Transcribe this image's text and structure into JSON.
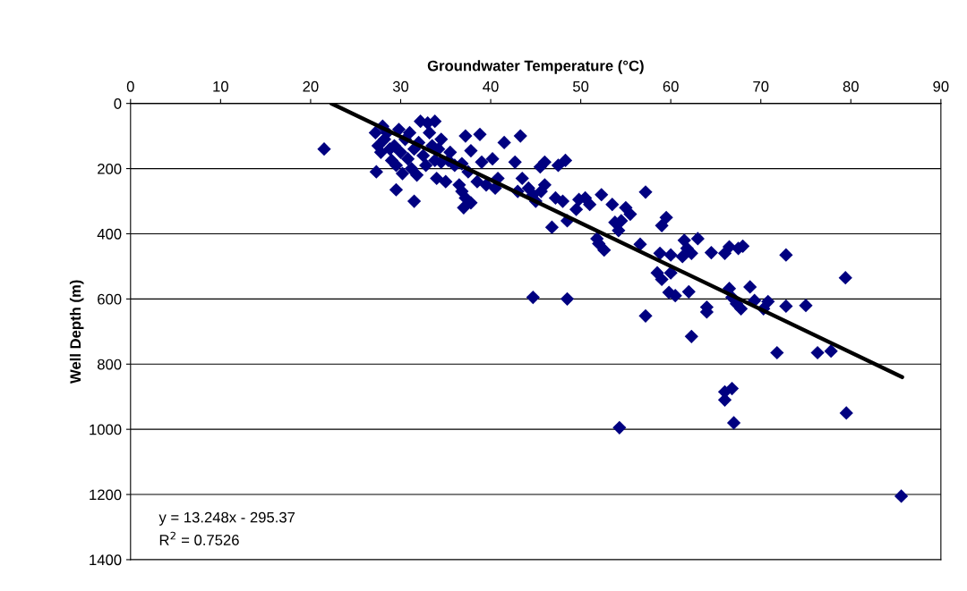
{
  "chart_data": {
    "type": "scatter",
    "xlabel": "Groundwater Temperature (°C)",
    "ylabel": "Well Depth (m)",
    "xlim": [
      0,
      90
    ],
    "xticks": [
      0,
      10,
      20,
      30,
      40,
      50,
      60,
      70,
      80,
      90
    ],
    "ylim": [
      1400,
      0
    ],
    "yticks": [
      0,
      200,
      400,
      600,
      800,
      1000,
      1200,
      1400
    ],
    "grid": "y",
    "annotations": [
      "y = 13.248x - 295.37",
      "R$^{2}$ = 0.7526"
    ],
    "series": [
      {
        "marker": "diamond",
        "color": "#000080",
        "x": [
          21.5,
          44.7,
          48.5,
          54.3,
          57.2,
          62.3,
          66,
          66,
          66.8,
          67,
          71.8,
          76.3,
          77.8,
          79.5,
          85.6,
          79.4,
          72.8,
          75,
          72.8,
          70.8,
          70.3,
          69.3,
          68.8,
          67.8,
          67.3,
          66.8,
          66.5,
          66.5,
          67.5,
          68,
          66,
          64.5,
          63,
          62.3,
          61.8,
          61.5,
          61.3,
          62,
          64,
          64,
          60.5,
          59.8,
          60,
          59,
          58.5,
          58.8,
          60,
          59.5,
          59,
          57.2,
          56.6,
          55.5,
          55,
          54.5,
          54.2,
          53.8,
          53.5,
          52.6,
          52.3,
          52,
          51.8,
          51,
          50.5,
          49.8,
          49.5,
          48.5,
          48.3,
          48,
          47.5,
          46.8,
          47.2,
          46,
          46,
          45.6,
          45.5,
          45,
          44.7,
          44.2,
          43.5,
          43.3,
          43,
          42.7,
          41.5,
          40.8,
          40.5,
          40.2,
          39.5,
          39,
          38.8,
          38.5,
          37.8,
          37.8,
          37.5,
          37.2,
          37.2,
          37,
          36.8,
          36.5,
          36,
          35.5,
          35,
          34.5,
          34.5,
          34,
          33.8,
          33.5,
          33.2,
          33,
          32.8,
          32.5,
          32.2,
          32,
          31.8,
          31.5,
          31.2,
          31,
          30.8,
          30.5,
          30.2,
          30,
          29.8,
          29.5,
          29.3,
          29,
          28.8,
          28.5,
          28.2,
          28,
          27.8,
          27.5,
          27.3,
          27.2,
          35.3,
          36.8,
          33.8,
          31.5,
          29.5,
          34.2
        ],
        "values": [
          140,
          595,
          600,
          995,
          652,
          715,
          885,
          910,
          875,
          980,
          765,
          765,
          760,
          950,
          1205,
          535,
          465,
          620,
          622,
          608,
          630,
          605,
          563,
          630,
          615,
          595,
          568,
          440,
          445,
          438,
          460,
          458,
          415,
          460,
          445,
          420,
          470,
          578,
          625,
          640,
          590,
          580,
          520,
          540,
          520,
          460,
          465,
          350,
          375,
          272,
          432,
          340,
          320,
          360,
          390,
          365,
          310,
          450,
          280,
          430,
          415,
          310,
          290,
          295,
          325,
          360,
          175,
          300,
          190,
          380,
          290,
          180,
          250,
          270,
          195,
          300,
          280,
          260,
          230,
          100,
          270,
          180,
          120,
          230,
          260,
          170,
          250,
          180,
          95,
          240,
          145,
          305,
          210,
          100,
          290,
          320,
          270,
          250,
          190,
          150,
          240,
          180,
          110,
          230,
          55,
          130,
          90,
          60,
          190,
          160,
          55,
          120,
          220,
          300,
          200,
          90,
          170,
          110,
          215,
          150,
          80,
          265,
          130,
          175,
          140,
          90,
          110,
          70,
          150,
          130,
          210,
          90,
          175,
          185,
          175,
          140,
          190,
          140
        ]
      },
      {
        "type": "line",
        "marker": "none",
        "line_style": "solid",
        "color": "#000000",
        "x": [
          22.3,
          85.7
        ],
        "values": [
          0,
          840
        ]
      }
    ]
  }
}
